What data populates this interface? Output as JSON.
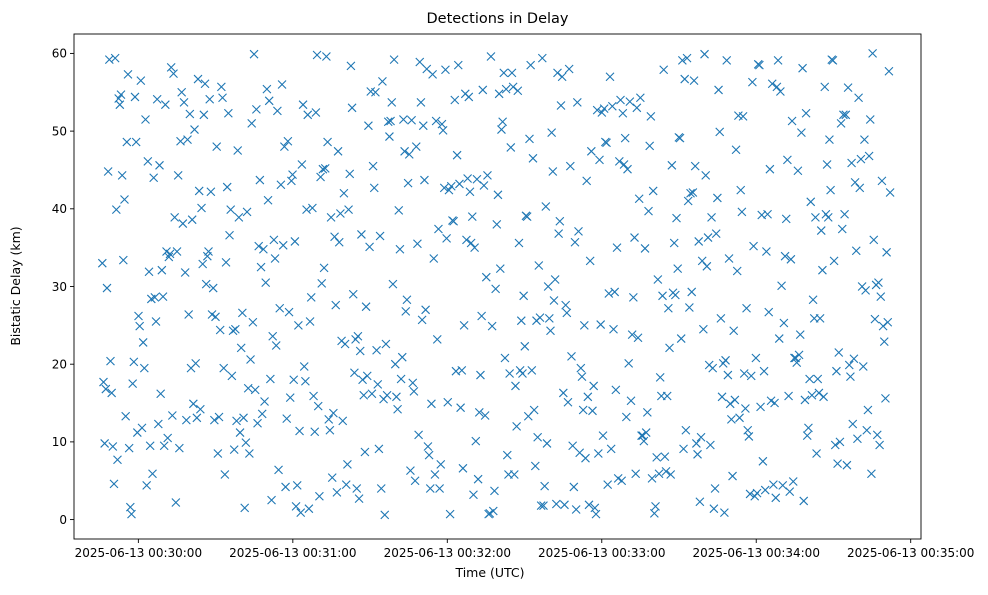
{
  "chart_data": {
    "type": "scatter",
    "title": "Detections in Delay",
    "xlabel": "Time (UTC)",
    "ylabel": "Bistatic Delay (km)",
    "marker": "x",
    "marker_color": "#1f77b4",
    "grid": false,
    "legend": "none",
    "xlim": [
      "2025-06-13 00:29:35",
      "2025-06-13 00:35:04"
    ],
    "ylim": [
      -2.5,
      62.5
    ],
    "x_ticks": [
      "2025-06-13 00:30:00",
      "2025-06-13 00:31:00",
      "2025-06-13 00:32:00",
      "2025-06-13 00:33:00",
      "2025-06-13 00:34:00",
      "2025-06-13 00:35:00"
    ],
    "y_ticks": [
      "0",
      "10",
      "20",
      "30",
      "40",
      "50",
      "60"
    ],
    "x_start": "2025-06-13 00:29:46",
    "x_end": "2025-06-13 00:34:52",
    "points": [
      [
        33.0,
        50.2,
        13.0,
        9.5,
        52.8,
        20.3,
        33.1,
        17.7
      ],
      [
        20.1,
        48.7,
        53.4,
        12.4,
        54.4,
        42.8,
        9.8,
        13.1
      ],
      [
        26.7,
        34.5,
        35.2,
        48.6,
        52.3,
        16.8,
        56.7,
        15.7
      ],
      [
        10.5,
        43.7,
        11.2,
        36.6,
        29.8,
        42.3,
        43.6,
        33.8
      ],
      [
        32.5,
        26.2,
        39.9,
        44.8,
        14.2,
        44.4,
        34.2,
        13.6
      ],
      [
        24.9,
        18.5,
        59.2,
        40.1,
        18.0,
        58.2,
        34.8,
        56.5
      ],
      [
        24.3,
        20.4,
        32.9,
        35.8,
        13.4,
        15.2,
        11.8,
        9.0
      ],
      [
        16.3,
        52.1,
        1.7,
        57.4,
        30.5,
        22.8,
        24.5,
        9.4
      ],
      [
        56.1,
        4.4,
        38.9,
        55.4,
        19.5,
        12.7,
        4.6,
        30.3
      ],
      [
        25.0,
        2.2,
        41.1,
        51.5,
        47.5,
        59.4,
        33.9,
        11.4
      ],
      [
        34.5,
        53.9,
        4.4,
        38.9,
        39.9,
        34.5,
        0.9,
        44.3
      ],
      [
        18.1,
        46.1,
        11.2,
        7.7,
        54.1,
        45.7,
        9.2,
        2.5
      ],
      [
        31.9,
        22.1,
        54.2,
        42.2,
        53.4,
        48.7,
        23.6,
        9.5
      ],
      [
        26.6,
        53.4,
        26.4,
        19.7,
        55.0,
        36.0,
        28.4,
        13.1
      ],
      [
        54.7,
        29.8,
        17.8,
        38.1,
        33.6,
        5.9,
        1.5,
        44.3
      ],
      [
        12.8,
        39.9,
        53.7,
        22.4,
        44.0,
        9.9,
        33.4,
        26.1
      ],
      [
        52.1,
        31.8,
        52.6,
        28.6,
        39.6,
        41.2,
        48.0,
        1.4
      ],
      [
        12.8,
        6.4,
        25.5,
        16.9,
        13.3,
        8.5,
        25.5,
        48.9
      ],
      [
        27.2,
        54.1,
        8.5,
        48.6,
        13.2,
        28.6,
        26.4,
        43.1
      ],
      [
        12.3,
        20.6,
        57.3,
        24.4,
        40.1,
        52.2,
        56.0,
        45.6
      ],
      [
        51.0,
        9.2,
        55.7,
        15.9,
        19.5,
        35.3,
        16.2,
        25.4
      ],
      [
        1.6,
        54.3,
        11.3,
        38.6,
        48.0,
        32.1,
        59.9,
        0.7
      ],
      [
        19.5,
        52.4,
        14.9,
        4.2,
        28.7,
        16.7,
        17.5,
        5.8
      ]
    ],
    "n_points": 676
  }
}
